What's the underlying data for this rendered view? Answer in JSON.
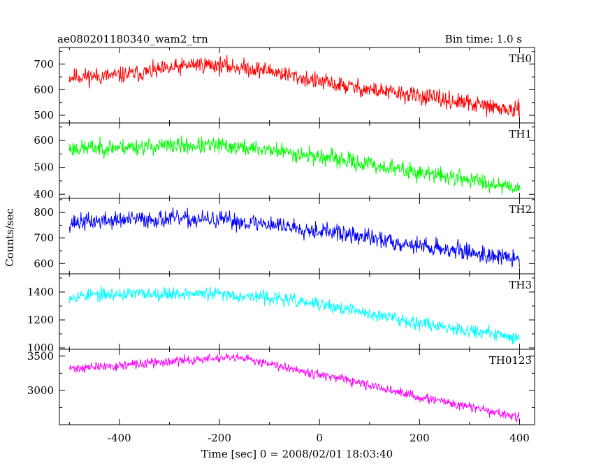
{
  "chart_data": {
    "type": "line",
    "title": "ae080201180340_wam2_trn",
    "subtitle": "Bin time: 1.0 s",
    "xlabel": "Time [sec] 0 = 2008/02/01 18:03:40",
    "ylabel": "Counts/sec",
    "xlim": [
      -520,
      430
    ],
    "x_ticks": [
      "-400",
      "-200",
      "0",
      "200",
      "400"
    ],
    "x_tick_values": [
      -400,
      -200,
      0,
      200,
      400
    ],
    "x_range": [
      -500,
      400
    ],
    "panels": [
      {
        "name": "TH0",
        "color": "#ff0000",
        "ylim": [
          470,
          765
        ],
        "y_ticks": [
          "500",
          "600",
          "700"
        ],
        "y_tick_values": [
          500,
          600,
          700
        ],
        "trend_x": [
          -500,
          -400,
          -300,
          -250,
          -200,
          -100,
          0,
          100,
          200,
          300,
          400
        ],
        "trend_y": [
          650,
          655,
          680,
          700,
          695,
          675,
          630,
          600,
          575,
          545,
          515
        ],
        "noise": 32,
        "seed": 11
      },
      {
        "name": "TH1",
        "color": "#00ff00",
        "ylim": [
          385,
          665
        ],
        "y_ticks": [
          "400",
          "500",
          "600"
        ],
        "y_tick_values": [
          400,
          500,
          600
        ],
        "trend_x": [
          -500,
          -400,
          -300,
          -200,
          -100,
          0,
          100,
          200,
          300,
          400
        ],
        "trend_y": [
          570,
          575,
          580,
          580,
          565,
          540,
          510,
          480,
          455,
          425
        ],
        "noise": 30,
        "seed": 23
      },
      {
        "name": "TH2",
        "color": "#0000ff",
        "ylim": [
          560,
          855
        ],
        "y_ticks": [
          "600",
          "700",
          "800"
        ],
        "y_tick_values": [
          600,
          700,
          800
        ],
        "trend_x": [
          -500,
          -400,
          -300,
          -200,
          -100,
          0,
          100,
          200,
          300,
          400
        ],
        "trend_y": [
          760,
          770,
          775,
          770,
          755,
          730,
          700,
          670,
          645,
          615
        ],
        "noise": 33,
        "seed": 37
      },
      {
        "name": "TH3",
        "color": "#00ffff",
        "ylim": [
          990,
          1530
        ],
        "y_ticks": [
          "1000",
          "1200",
          "1400"
        ],
        "y_tick_values": [
          1000,
          1200,
          1400
        ],
        "trend_x": [
          -500,
          -400,
          -300,
          -200,
          -100,
          0,
          100,
          200,
          300,
          400
        ],
        "trend_y": [
          1370,
          1385,
          1390,
          1385,
          1360,
          1310,
          1245,
          1180,
          1125,
          1070
        ],
        "noise": 45,
        "seed": 53
      },
      {
        "name": "TH0123",
        "color": "#ff00ff",
        "ylim": [
          2500,
          3600
        ],
        "y_ticks": [
          "3000",
          "3500"
        ],
        "y_tick_values": [
          3000,
          3500
        ],
        "trend_x": [
          -500,
          -400,
          -300,
          -200,
          -150,
          -100,
          0,
          100,
          200,
          300,
          400
        ],
        "trend_y": [
          3320,
          3360,
          3420,
          3470,
          3460,
          3400,
          3230,
          3070,
          2900,
          2760,
          2600
        ],
        "noise": 65,
        "seed": 71
      }
    ]
  }
}
